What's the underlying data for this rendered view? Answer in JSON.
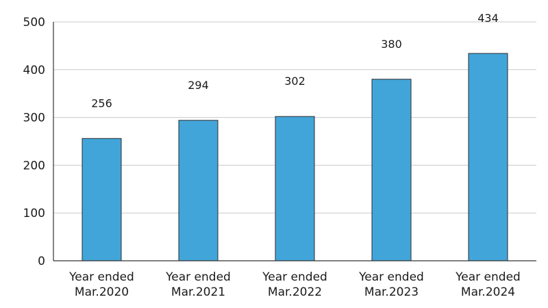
{
  "chart_data": {
    "type": "bar",
    "title": "",
    "xlabel": "",
    "ylabel": "",
    "categories": [
      [
        "Year ended",
        "Mar.2020"
      ],
      [
        "Year ended",
        "Mar.2021"
      ],
      [
        "Year ended",
        "Mar.2022"
      ],
      [
        "Year ended",
        "Mar.2023"
      ],
      [
        "Year ended",
        "Mar.2024"
      ]
    ],
    "values": [
      256,
      294,
      302,
      380,
      434
    ],
    "data_labels": [
      "256",
      "294",
      "302",
      "380",
      "434"
    ],
    "ylim": [
      0,
      500
    ],
    "yticks": [
      0,
      100,
      200,
      300,
      400,
      500
    ],
    "grid": true,
    "legend": "none",
    "bar_color": "#42a5d9"
  }
}
